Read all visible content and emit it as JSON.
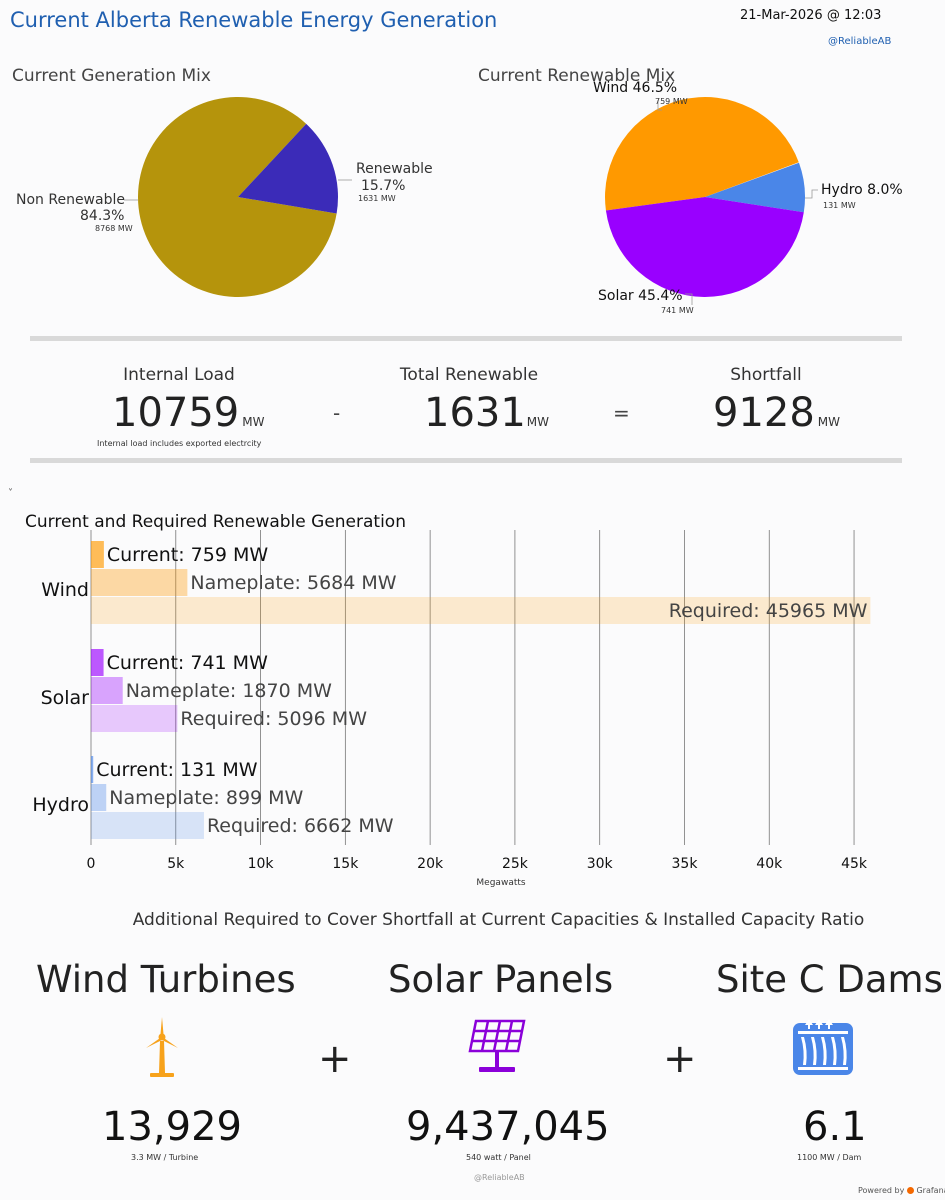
{
  "header": {
    "title": "Current Alberta Renewable Energy Generation",
    "datetime": "21-Mar-2026 @ 12:03",
    "handle": "@ReliableAB"
  },
  "colors": {
    "non_renewable": "#b5940c",
    "renewable": "#3b2bb8",
    "wind": "#ff9900",
    "solar": "#9900ff",
    "hydro": "#4a86e8"
  },
  "generation_mix": {
    "title": "Current Generation Mix",
    "renewable_label": "Renewable",
    "renewable_pct": "15.7%",
    "renewable_mw": "1631 MW",
    "non_renewable_label": "Non Renewable",
    "non_renewable_pct": "84.3%",
    "non_renewable_mw": "8768 MW"
  },
  "renewable_mix": {
    "title": "Current Renewable Mix",
    "wind_label": "Wind 46.5%",
    "wind_mw": "759 MW",
    "hydro_label": "Hydro 8.0%",
    "hydro_mw": "131 MW",
    "solar_label": "Solar 45.4%",
    "solar_mw": "741 MW"
  },
  "stats": {
    "internal_load_label": "Internal Load",
    "internal_load_value": "10759",
    "internal_load_unit": "MW",
    "internal_load_note": "Internal load includes exported electrcity",
    "minus": "-",
    "total_renewable_label": "Total Renewable",
    "total_renewable_value": "1631",
    "total_renewable_unit": "MW",
    "equals": "=",
    "shortfall_label": "Shortfall",
    "shortfall_value": "9128",
    "shortfall_unit": "MW"
  },
  "bar_section": {
    "collapse_glyph": "˅",
    "title": "Current and Required Renewable Generation",
    "xlabel": "Megawatts"
  },
  "chart_data": {
    "type": "bar",
    "orientation": "horizontal",
    "title": "Current and Required Renewable Generation",
    "xlabel": "Megawatts",
    "ylabel": "",
    "xlim": [
      0,
      46000
    ],
    "x_ticks": [
      "0",
      "5k",
      "10k",
      "15k",
      "20k",
      "25k",
      "30k",
      "35k",
      "40k",
      "45k"
    ],
    "x_tick_values": [
      0,
      5000,
      10000,
      15000,
      20000,
      25000,
      30000,
      35000,
      40000,
      45000
    ],
    "grid": true,
    "categories": [
      "Wind",
      "Solar",
      "Hydro"
    ],
    "groups": [
      {
        "category": "Wind",
        "color": "#ff9900",
        "bars": [
          {
            "label": "Current: 759 MW",
            "value": 759,
            "opacity": 0.65
          },
          {
            "label": "Nameplate: 5684 MW",
            "value": 5684,
            "opacity": 0.35
          },
          {
            "label": "Required: 45965 MW",
            "value": 45965,
            "opacity": 0.18
          }
        ]
      },
      {
        "category": "Solar",
        "color": "#9900ff",
        "bars": [
          {
            "label": "Current: 741 MW",
            "value": 741,
            "opacity": 0.65
          },
          {
            "label": "Nameplate: 1870 MW",
            "value": 1870,
            "opacity": 0.35
          },
          {
            "label": "Required: 5096 MW",
            "value": 5096,
            "opacity": 0.2
          }
        ]
      },
      {
        "category": "Hydro",
        "color": "#4a86e8",
        "bars": [
          {
            "label": "Current: 131 MW",
            "value": 131,
            "opacity": 0.65
          },
          {
            "label": "Nameplate: 899 MW",
            "value": 899,
            "opacity": 0.35
          },
          {
            "label": "Required: 6662 MW",
            "value": 6662,
            "opacity": 0.2
          }
        ]
      }
    ]
  },
  "additional": {
    "title": "Additional Required to Cover Shortfall at Current Capacities & Installed Capacity Ratio",
    "wind_title": "Wind Turbines",
    "wind_icon": "wind-turbine-icon",
    "wind_count": "13,929",
    "wind_note": "3.3 MW / Turbine",
    "plus": "+",
    "solar_title": "Solar Panels",
    "solar_icon": "solar-panel-icon",
    "solar_count": "9,437,045",
    "solar_note": "540 watt / Panel",
    "dam_title": "Site C Dams",
    "dam_icon": "dam-icon",
    "dam_count": "6.1",
    "dam_note": "1100 MW / Dam"
  },
  "footer": {
    "handle": "@ReliableAB",
    "powered_by": "Powered by",
    "brand": "Grafana"
  }
}
